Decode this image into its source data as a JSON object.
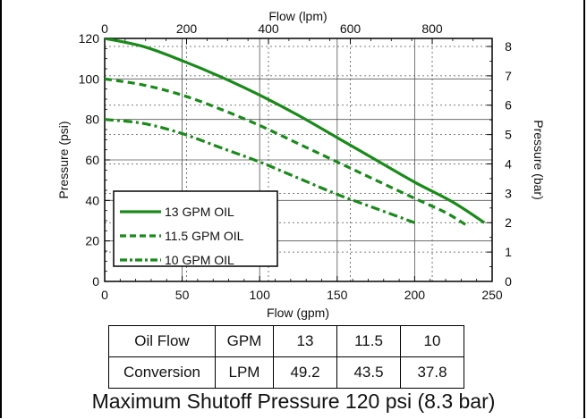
{
  "chart_data": {
    "type": "line",
    "title": "",
    "x": [
      0,
      25,
      50,
      75,
      100,
      125,
      150,
      175,
      200,
      225,
      250
    ],
    "xlabel": "Flow (gpm)",
    "xlim": [
      0,
      250
    ],
    "xticks": [
      0,
      50,
      100,
      150,
      200,
      250
    ],
    "x2label": "Flow (lpm)",
    "x2ticks": [
      0,
      200,
      400,
      600,
      800
    ],
    "ylabel": "Pressure (psi)",
    "ylim": [
      0,
      120
    ],
    "yticks": [
      0,
      20,
      40,
      60,
      80,
      100,
      120
    ],
    "y2label": "Pressure (bar)",
    "y2ticks": [
      0,
      1,
      2,
      3,
      4,
      5,
      6,
      7,
      8
    ],
    "grid": true,
    "legend_position": "bottom-left",
    "series": [
      {
        "name": "13 GPM OIL",
        "style": "solid",
        "points": [
          [
            0,
            120
          ],
          [
            25,
            116
          ],
          [
            50,
            109
          ],
          [
            75,
            101
          ],
          [
            100,
            92
          ],
          [
            125,
            82
          ],
          [
            150,
            71
          ],
          [
            175,
            60
          ],
          [
            200,
            49
          ],
          [
            225,
            39
          ],
          [
            245,
            29
          ]
        ]
      },
      {
        "name": "11.5 GPM OIL",
        "style": "dashed",
        "points": [
          [
            0,
            100
          ],
          [
            25,
            97
          ],
          [
            50,
            92
          ],
          [
            75,
            85
          ],
          [
            100,
            77
          ],
          [
            125,
            68
          ],
          [
            150,
            59
          ],
          [
            175,
            50
          ],
          [
            200,
            41
          ],
          [
            220,
            34
          ],
          [
            235,
            27
          ]
        ]
      },
      {
        "name": "10 GPM OIL",
        "style": "dashdot",
        "points": [
          [
            0,
            80
          ],
          [
            25,
            78
          ],
          [
            50,
            73
          ],
          [
            75,
            66
          ],
          [
            100,
            59
          ],
          [
            125,
            51
          ],
          [
            150,
            43
          ],
          [
            175,
            36
          ],
          [
            200,
            29
          ]
        ]
      }
    ]
  },
  "table": {
    "rows": [
      [
        "Oil Flow",
        "GPM",
        "13",
        "11.5",
        "10"
      ],
      [
        "Conversion",
        "LPM",
        "49.2",
        "43.5",
        "37.8"
      ]
    ]
  },
  "footer": "Maximum Shutoff Pressure  120 psi (8.3 bar)",
  "colors": {
    "series": "#1a8a1a",
    "grid": "#555555",
    "axis": "#000000"
  }
}
